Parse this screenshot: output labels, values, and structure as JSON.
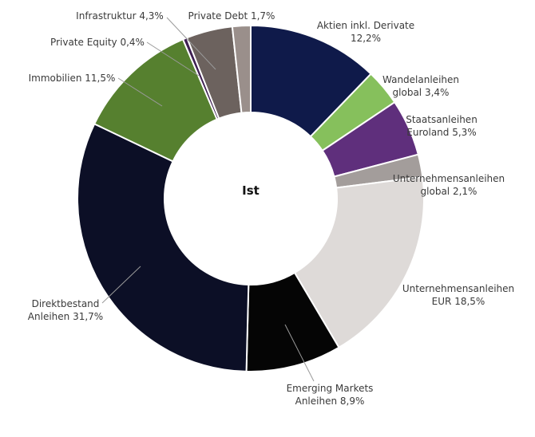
{
  "chart_data": {
    "type": "pie",
    "style": "donut",
    "center_label": "Ist",
    "slices": [
      {
        "label_lines": [
          "Aktien inkl. Derivate",
          "12,2%"
        ],
        "value": 12.2,
        "color": "#0f1a4a"
      },
      {
        "label_lines": [
          "Wandelanleihen",
          "global 3,4%"
        ],
        "value": 3.4,
        "color": "#86c05c"
      },
      {
        "label_lines": [
          "Staatsanleihen",
          "Euroland 5,3%"
        ],
        "value": 5.3,
        "color": "#5f2f7c"
      },
      {
        "label_lines": [
          "Unternehmensanleihen",
          "global 2,1%"
        ],
        "value": 2.1,
        "color": "#a39d9b"
      },
      {
        "label_lines": [
          "Unternehmensanleihen",
          "EUR 18,5%"
        ],
        "value": 18.5,
        "color": "#dedad8"
      },
      {
        "label_lines": [
          "Emerging Markets",
          "Anleihen 8,9%"
        ],
        "value": 8.9,
        "color": "#050505"
      },
      {
        "label_lines": [
          "Direktbestand",
          "Anleihen 31,7%"
        ],
        "value": 31.7,
        "color": "#0c0f26"
      },
      {
        "label_lines": [
          "Immobilien 11,5%"
        ],
        "value": 11.5,
        "color": "#56802f"
      },
      {
        "label_lines": [
          "Private Equity 0,4%"
        ],
        "value": 0.4,
        "color": "#3e1f52"
      },
      {
        "label_lines": [
          "Infrastruktur 4,3%"
        ],
        "value": 4.3,
        "color": "#6c625e"
      },
      {
        "label_lines": [
          "Private Debt 1,7%"
        ],
        "value": 1.7,
        "color": "#9a8f8b"
      }
    ]
  }
}
